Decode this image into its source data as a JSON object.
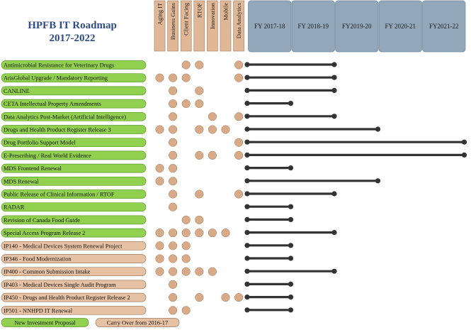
{
  "title_lines": [
    "HPFB IT Roadmap",
    "2017-2022"
  ],
  "chart_data": {
    "type": "table",
    "criteria": [
      "Aging IT",
      "Business Gains",
      "Client Facing",
      "RTOF",
      "Innovation",
      "Mobile",
      "Data Analytics"
    ],
    "fiscal_years": [
      "FY 2017-18",
      "FY 2018-19",
      "FY2019-20",
      "FY 2020-21",
      "FY2021-22"
    ],
    "projects": [
      {
        "name": "Antimicrobial Resistance for Veterinary Drugs",
        "category": "new",
        "criteria": [
          0,
          0,
          1,
          1,
          0,
          0,
          1
        ],
        "start": 0.0,
        "end": 2.0
      },
      {
        "name": "ArisGlobal Upgrade / Mandatory Reporting",
        "category": "new",
        "criteria": [
          1,
          1,
          1,
          0,
          0,
          0,
          1
        ],
        "start": 0.0,
        "end": 2.0
      },
      {
        "name": "CANLINE",
        "category": "new",
        "criteria": [
          0,
          1,
          0,
          1,
          0,
          0,
          0
        ],
        "start": 0.0,
        "end": 2.0
      },
      {
        "name": "CETA Intellectual Property Amendments",
        "category": "new",
        "criteria": [
          0,
          1,
          1,
          1,
          0,
          0,
          0
        ],
        "start": 0.0,
        "end": 1.0
      },
      {
        "name": "Data Analytics Post-Market (Artificial Intelligence)",
        "category": "new",
        "criteria": [
          0,
          1,
          0,
          0,
          1,
          0,
          1
        ],
        "start": 0.0,
        "end": 2.0
      },
      {
        "name": "Drugs and Health Product Register Release 3",
        "category": "new",
        "criteria": [
          1,
          1,
          0,
          1,
          1,
          1,
          0
        ],
        "start": 0.0,
        "end": 3.0
      },
      {
        "name": "Drug Portfolio Support Model",
        "category": "new",
        "criteria": [
          0,
          1,
          0,
          0,
          0,
          0,
          1
        ],
        "start": 0.0,
        "end": 5.0
      },
      {
        "name": "E-Prescribing / Real World Evidence",
        "category": "new",
        "criteria": [
          0,
          1,
          0,
          1,
          1,
          0,
          1
        ],
        "start": 0.0,
        "end": 5.0
      },
      {
        "name": "MDS Frontend Renewal",
        "category": "new",
        "criteria": [
          1,
          1,
          0,
          0,
          0,
          0,
          0
        ],
        "start": 0.0,
        "end": 1.0
      },
      {
        "name": "MDS Renewal",
        "category": "new",
        "criteria": [
          1,
          1,
          0,
          0,
          0,
          0,
          0
        ],
        "start": 0.0,
        "end": 3.0
      },
      {
        "name": "Public Release of Clinical Information / RTOF",
        "category": "new",
        "criteria": [
          0,
          1,
          0,
          1,
          0,
          0,
          1
        ],
        "start": 0.0,
        "end": 2.0
      },
      {
        "name": "RADAR",
        "category": "new",
        "criteria": [
          0,
          1,
          0,
          0,
          0,
          0,
          0
        ],
        "start": 0.0,
        "end": 1.0
      },
      {
        "name": "Revision of Canada Food Guide",
        "category": "new",
        "criteria": [
          0,
          0,
          1,
          1,
          0,
          0,
          0
        ],
        "start": 0.0,
        "end": 1.0
      },
      {
        "name": "Special Access Program Release 2",
        "category": "new",
        "criteria": [
          1,
          1,
          1,
          1,
          1,
          1,
          0
        ],
        "start": 0.0,
        "end": 2.0
      },
      {
        "name": "IP140 - Medical Devices System Renewal Project",
        "category": "carry",
        "criteria": [
          1,
          1,
          1,
          0,
          0,
          0,
          0
        ],
        "start": 0.0,
        "end": 1.0
      },
      {
        "name": "IP346 - Food Modernization",
        "category": "carry",
        "criteria": [
          1,
          1,
          1,
          0,
          0,
          0,
          0
        ],
        "start": 0.0,
        "end": 1.0
      },
      {
        "name": "IP400 - Common Submission Intake",
        "category": "carry",
        "criteria": [
          1,
          1,
          1,
          1,
          1,
          0,
          0
        ],
        "start": 0.0,
        "end": 2.0
      },
      {
        "name": "IP403 - Medical Devices Single Audit Program",
        "category": "carry",
        "criteria": [
          0,
          1,
          0,
          0,
          0,
          0,
          0
        ],
        "start": 0.0,
        "end": 1.0
      },
      {
        "name": "IP450 - Drugs and Health Product Register Release 2",
        "category": "carry",
        "criteria": [
          0,
          1,
          0,
          1,
          0,
          1,
          1
        ],
        "start": 0.0,
        "end": 1.0
      },
      {
        "name": "IP501 - NNHPD IT Renewal",
        "category": "carry",
        "criteria": [
          0,
          1,
          1,
          0,
          0,
          0,
          0
        ],
        "start": 0.0,
        "end": 1.0
      }
    ],
    "legend": [
      {
        "label": "New Investment Proposal",
        "category": "new"
      },
      {
        "label": "Carry Over from 2016-17",
        "category": "carry"
      }
    ],
    "colors": {
      "new_fill": "#92d050",
      "new_stroke": "#5e9a2a",
      "carry_fill": "#e6c1a4",
      "carry_stroke": "#a07a5c",
      "criteria_header": "#e0b898",
      "dot": "#d8aa88",
      "fy_header": "#92a8ba",
      "title": "#2e4d86",
      "timeline": "#333333"
    }
  }
}
